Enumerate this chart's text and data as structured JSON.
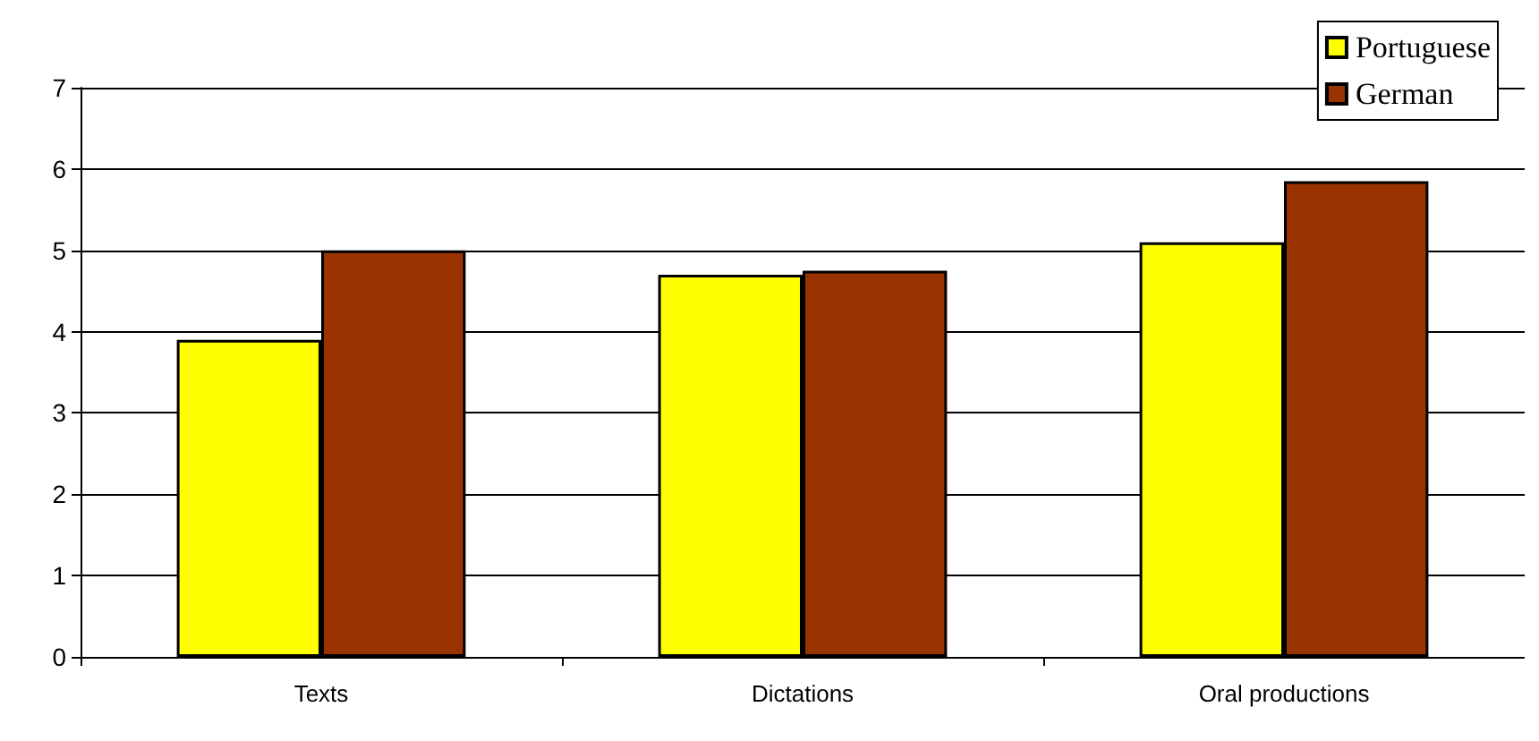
{
  "chart_data": {
    "type": "bar",
    "categories": [
      "Texts",
      "Dictations",
      "Oral productions"
    ],
    "series": [
      {
        "name": "Portuguese",
        "color": "#ffff00",
        "values": [
          3.9,
          4.7,
          5.1
        ]
      },
      {
        "name": "German",
        "color": "#993300",
        "values": [
          5.0,
          4.75,
          5.85
        ]
      }
    ],
    "ylim": [
      0,
      7
    ],
    "yticks": [
      0,
      1,
      2,
      3,
      4,
      5,
      6,
      7
    ],
    "grid": "y",
    "legend": "top right"
  }
}
